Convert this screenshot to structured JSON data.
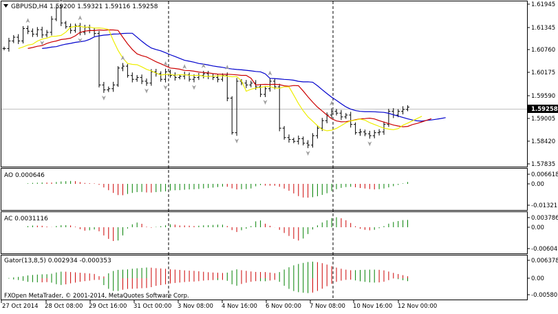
{
  "main_panel": {
    "info_text": "GBPUSD,H4  1.59200 1.59321 1.59116 1.59258",
    "price_axis_labels": [
      "1.61945",
      "1.61345",
      "1.60760",
      "1.60175",
      "1.59590",
      "1.59005",
      "1.58420",
      "1.57835"
    ],
    "current_price_label": "1.59258"
  },
  "ao_panel": {
    "info_text": "AO 0.000646",
    "axis_labels": [
      "0.006618",
      "0.00",
      "-0.013217"
    ]
  },
  "ac_panel": {
    "info_text": "AC 0.0031116",
    "axis_labels": [
      "0.003786",
      "0.00",
      "-0.006047"
    ]
  },
  "gator_panel": {
    "info_text": "Gator(13,8,5) 0.002934 -0.000353",
    "axis_labels": [
      "0.006378",
      "0.00",
      "-0.005807"
    ]
  },
  "time_axis_labels": [
    "27 Oct 2014",
    "28 Oct 08:00",
    "29 Oct 16:00",
    "31 Oct 00:00",
    "3 Nov 08:00",
    "4 Nov 16:00",
    "6 Nov 00:00",
    "7 Nov 08:00",
    "10 Nov 16:00",
    "12 Nov 00:00"
  ],
  "copyright": "FXOpen MetaTrader, © 2001-2014, MetaQuotes Software Corp.",
  "colors": {
    "background": "#ffffff",
    "bars": "#000000",
    "jaw": "#0000cc",
    "teeth": "#cc0000",
    "lips": "#eeee00",
    "fractal": "#a0a0a0",
    "up_histogram": "#008000",
    "down_histogram": "#cc0000",
    "current_price_bg": "#000000"
  },
  "chart_data": {
    "type": "ohlc",
    "symbol": "GBPUSD",
    "timeframe": "H4",
    "ylim": [
      1.5775,
      1.62
    ],
    "close": [
      1.6082,
      1.6102,
      1.6112,
      1.6102,
      1.6135,
      1.6128,
      1.612,
      1.6132,
      1.6118,
      1.6125,
      1.616,
      1.619,
      1.615,
      1.614,
      1.613,
      1.6142,
      1.6125,
      1.6138,
      1.613,
      1.6122,
      1.5985,
      1.5972,
      1.5975,
      1.5985,
      1.603,
      1.6035,
      1.601,
      1.6,
      1.6005,
      1.5995,
      1.599,
      1.602,
      1.6015,
      1.6,
      1.602,
      1.601,
      1.6005,
      1.6008,
      1.6012,
      1.6,
      1.6005,
      1.601,
      1.6015,
      1.6008,
      1.6005,
      1.6,
      1.601,
      1.595,
      1.5858,
      1.5995,
      1.599,
      1.5985,
      1.599,
      1.598,
      1.596,
      1.5975,
      1.5995,
      1.598,
      1.587,
      1.5845,
      1.584,
      1.5835,
      1.5842,
      1.583,
      1.5825,
      1.585,
      1.587,
      1.589,
      1.5905,
      1.5915,
      1.591,
      1.59,
      1.5905,
      1.588,
      1.5858,
      1.586,
      1.5855,
      1.585,
      1.5858,
      1.586,
      1.588,
      1.5915,
      1.5905,
      1.5915,
      1.592,
      1.5926
    ],
    "indicators": {
      "ao_last": 0.000646,
      "ac_last": 0.0031116,
      "gator": {
        "periods": [
          13,
          8,
          5
        ],
        "upper_last": 0.002934,
        "lower_last": -0.000353
      }
    }
  }
}
